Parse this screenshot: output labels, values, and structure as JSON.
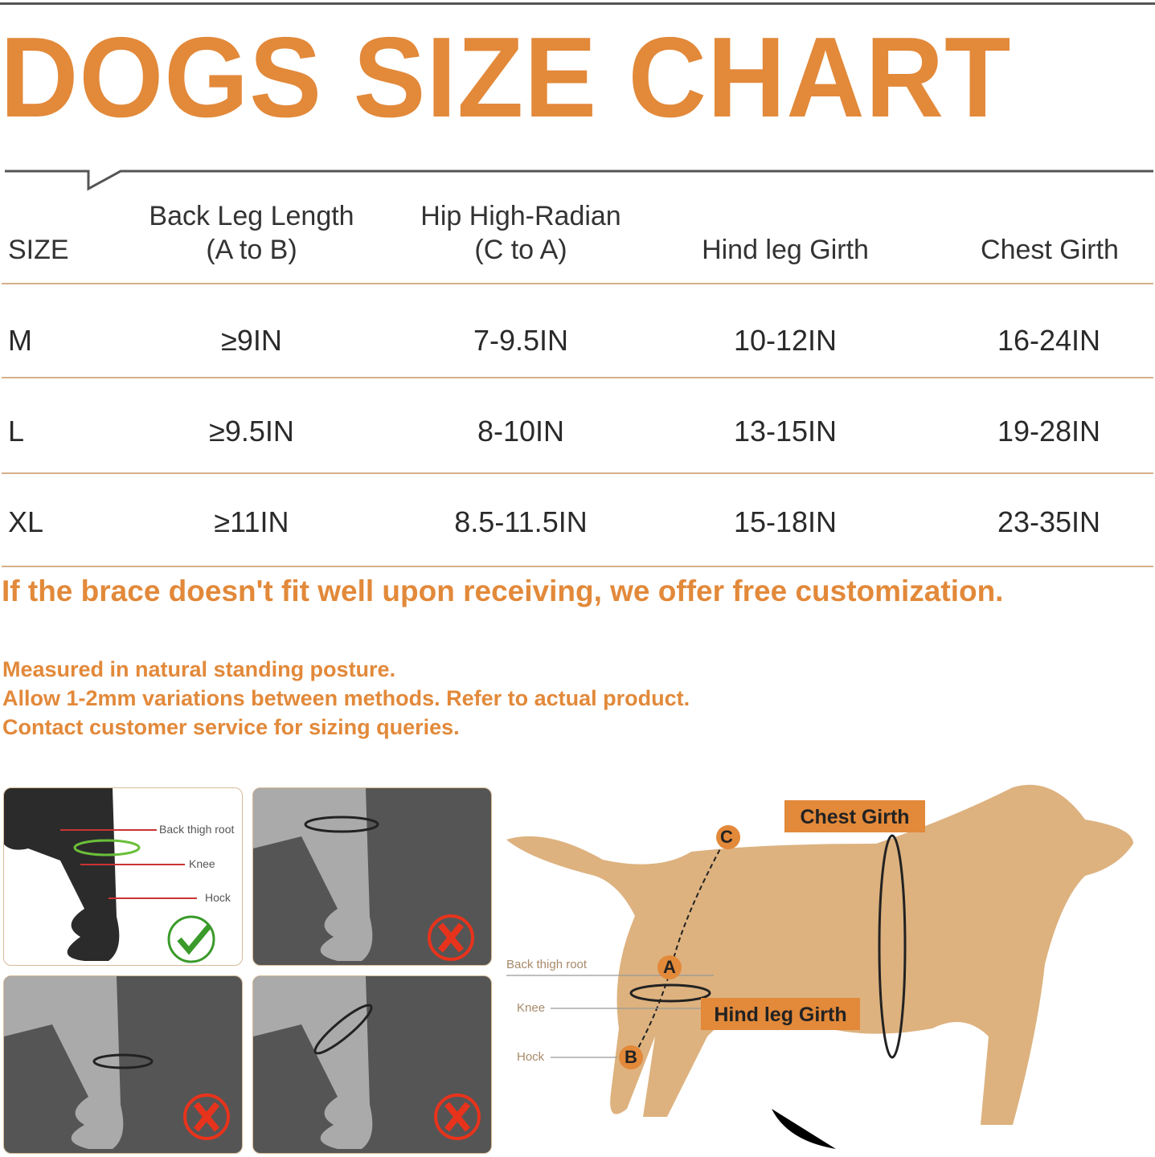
{
  "title": "DOGS SIZE CHART",
  "table": {
    "headers": [
      {
        "line1": "SIZE",
        "line2": ""
      },
      {
        "line1": "Back Leg Length",
        "line2": "(A to B)"
      },
      {
        "line1": "Hip High-Radian",
        "line2": "(C to A)"
      },
      {
        "line1": "Hind leg Girth",
        "line2": ""
      },
      {
        "line1": "Chest Girth",
        "line2": ""
      }
    ],
    "rows": [
      [
        "M",
        "≥9IN",
        "7-9.5IN",
        "10-12IN",
        "16-24IN"
      ],
      [
        "L",
        "≥9.5IN",
        "8-10IN",
        "13-15IN",
        "19-28IN"
      ],
      [
        "XL",
        "≥11IN",
        "8.5-11.5IN",
        "15-18IN",
        "23-35IN"
      ]
    ]
  },
  "customization_note": "If the brace doesn't fit well upon receiving, we offer free customization.",
  "notes": [
    "Measured in natural standing posture.",
    "Allow 1-2mm variations between methods. Refer to actual product.",
    "Contact customer service for sizing queries."
  ],
  "leg_diagram": {
    "labels": [
      "Back thigh root",
      "Knee",
      "Hock"
    ],
    "panels": [
      "correct",
      "incorrect",
      "incorrect",
      "incorrect"
    ]
  },
  "dog_diagram": {
    "chest_label": "Chest Girth",
    "hind_label": "Hind leg Girth",
    "points": [
      "C",
      "A",
      "B"
    ],
    "side_labels": [
      "Back thigh root",
      "Knee",
      "Hock"
    ]
  },
  "colors": {
    "accent": "#e2893a",
    "rule": "#d5b089",
    "correct": "#3a9a2a",
    "incorrect": "#e8331c"
  }
}
